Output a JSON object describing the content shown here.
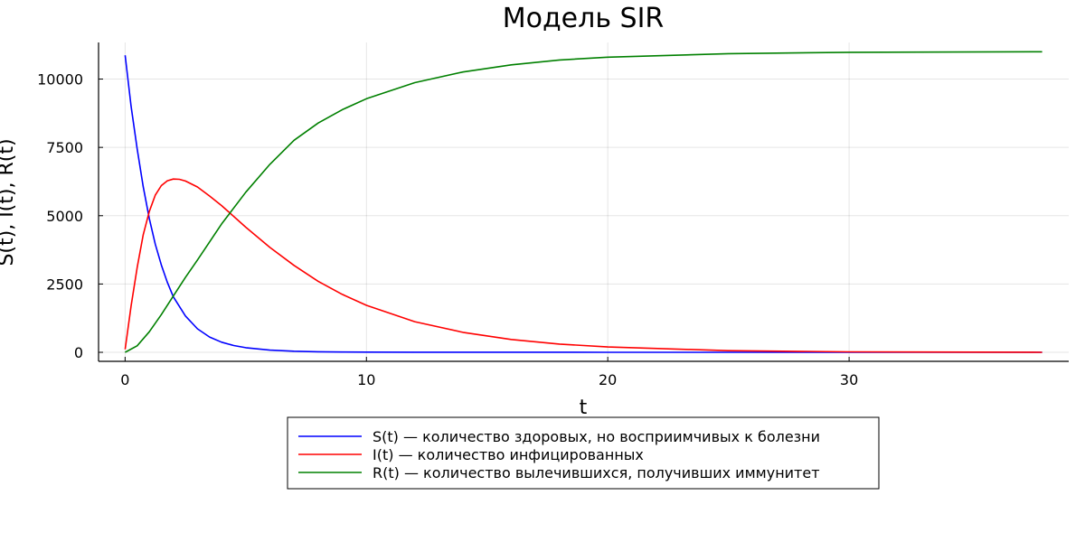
{
  "chart_data": {
    "type": "line",
    "title": "Модель SIR",
    "xlabel": "t",
    "ylabel": "S(t), I(t), R(t)",
    "xlim": [
      -1.1,
      39.1
    ],
    "ylim": [
      -330,
      11340
    ],
    "xticks": [
      0,
      10,
      20,
      30
    ],
    "yticks": [
      0,
      2500,
      5000,
      7500,
      10000
    ],
    "grid": true,
    "legend_position": "bottom-center",
    "series": [
      {
        "name": "S(t) — количество здоровых, но восприимчивых к болезни",
        "color": "#0000ff",
        "x": [
          0,
          0.25,
          0.5,
          0.75,
          1,
          1.25,
          1.5,
          1.75,
          2,
          2.5,
          3,
          3.5,
          4,
          4.5,
          5,
          6,
          7,
          8,
          9,
          10,
          12,
          15,
          20,
          25,
          30,
          38
        ],
        "values": [
          10870,
          9000,
          7450,
          6060,
          4900,
          3960,
          3200,
          2560,
          2030,
          1330,
          860,
          560,
          370,
          250,
          170,
          80,
          40,
          20,
          12,
          8,
          5,
          3,
          2,
          1,
          1,
          0
        ]
      },
      {
        "name": "I(t) — количество инфицированных",
        "color": "#ff0000",
        "x": [
          0,
          0.25,
          0.5,
          0.75,
          1,
          1.25,
          1.5,
          1.75,
          2,
          2.25,
          2.5,
          3,
          3.5,
          4,
          5,
          6,
          7,
          8,
          9,
          10,
          12,
          14,
          16,
          18,
          20,
          25,
          30,
          38
        ],
        "values": [
          111,
          1700,
          3100,
          4300,
          5150,
          5750,
          6100,
          6280,
          6340,
          6330,
          6270,
          6050,
          5720,
          5370,
          4580,
          3840,
          3180,
          2600,
          2120,
          1720,
          1120,
          730,
          470,
          300,
          195,
          60,
          18,
          2
        ]
      },
      {
        "name": "R(t) — количество вылечившихся, получивших иммунитет",
        "color": "#008000",
        "x": [
          0,
          0.5,
          1,
          1.5,
          2,
          2.5,
          3,
          3.5,
          4,
          5,
          6,
          7,
          8,
          9,
          10,
          12,
          14,
          16,
          18,
          20,
          25,
          30,
          38
        ],
        "values": [
          0,
          240,
          750,
          1380,
          2060,
          2740,
          3380,
          4040,
          4700,
          5860,
          6880,
          7760,
          8390,
          8880,
          9280,
          9870,
          10260,
          10520,
          10700,
          10800,
          10930,
          10980,
          11000
        ]
      }
    ]
  }
}
